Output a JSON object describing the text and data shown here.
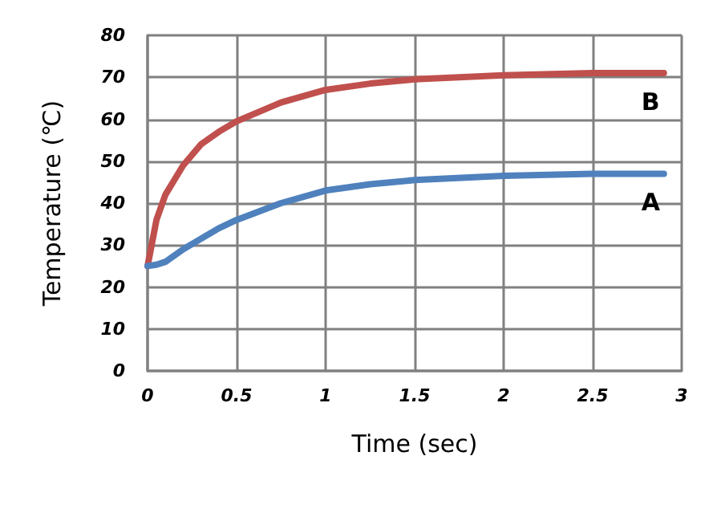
{
  "chart_data": {
    "type": "line",
    "xlabel": "Time (sec)",
    "ylabel": "Temperature (℃)",
    "xlim": [
      0,
      3
    ],
    "xticks": [
      0,
      0.5,
      1,
      1.5,
      2,
      2.5,
      3
    ],
    "ylim": [
      0,
      80
    ],
    "yticks": [
      0,
      10,
      20,
      30,
      40,
      50,
      60,
      70,
      80
    ],
    "grid": true,
    "marker": "none",
    "line_style": "solid",
    "series": [
      {
        "name": "B",
        "color": "#c0504d",
        "x": [
          0,
          0.05,
          0.1,
          0.2,
          0.3,
          0.4,
          0.5,
          0.75,
          1,
          1.25,
          1.5,
          2,
          2.5,
          2.9
        ],
        "values": [
          25,
          36,
          42,
          49,
          54,
          57,
          59.5,
          64,
          67,
          68.5,
          69.5,
          70.5,
          71,
          71
        ]
      },
      {
        "name": "A",
        "color": "#4f81bd",
        "x": [
          0,
          0.05,
          0.1,
          0.2,
          0.3,
          0.4,
          0.5,
          0.75,
          1,
          1.25,
          1.5,
          2,
          2.5,
          2.9
        ],
        "values": [
          25,
          25.3,
          26,
          29,
          31.5,
          34,
          36,
          40,
          43,
          44.5,
          45.5,
          46.5,
          47,
          47
        ]
      }
    ]
  }
}
